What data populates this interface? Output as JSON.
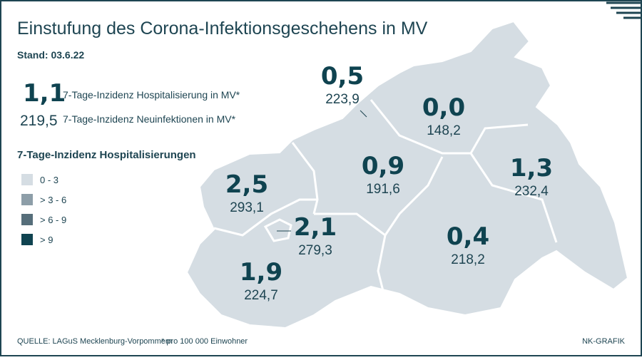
{
  "header": {
    "title": "Einstufung des Corona-Infektionsgeschehens in MV",
    "date": "Stand: 03.6.22"
  },
  "summary": [
    {
      "value": "1,1",
      "label": "7-Tage-Inzidenz Hospitalisierung in MV*"
    },
    {
      "value": "219,5",
      "label": "7-Tage-Inzidenz Neuinfektionen in MV*"
    }
  ],
  "legend": {
    "title": "7-Tage-Inzidenz Hospitalisierungen",
    "items": [
      {
        "label": "0 - 3",
        "color": "#d5dde3"
      },
      {
        "label": "> 3 - 6",
        "color": "#8d9ea8"
      },
      {
        "label": "> 6 - 9",
        "color": "#566e7a"
      },
      {
        "label": "> 9",
        "color": "#0f4350"
      }
    ]
  },
  "regions": [
    {
      "hospitalization": "0,5",
      "infections": "223,9"
    },
    {
      "hospitalization": "0,0",
      "infections": "148,2"
    },
    {
      "hospitalization": "2,5",
      "infections": "293,1"
    },
    {
      "hospitalization": "0,9",
      "infections": "191,6"
    },
    {
      "hospitalization": "1,3",
      "infections": "232,4"
    },
    {
      "hospitalization": "2,1",
      "infections": "279,3"
    },
    {
      "hospitalization": "0,4",
      "infections": "218,2"
    },
    {
      "hospitalization": "1,9",
      "infections": "224,7"
    }
  ],
  "footer": {
    "source": "QUELLE: LAGuS Mecklenburg-Vorpommern",
    "note": "* pro 100 000 Einwohner",
    "credit": "NK-GRAFIK"
  }
}
